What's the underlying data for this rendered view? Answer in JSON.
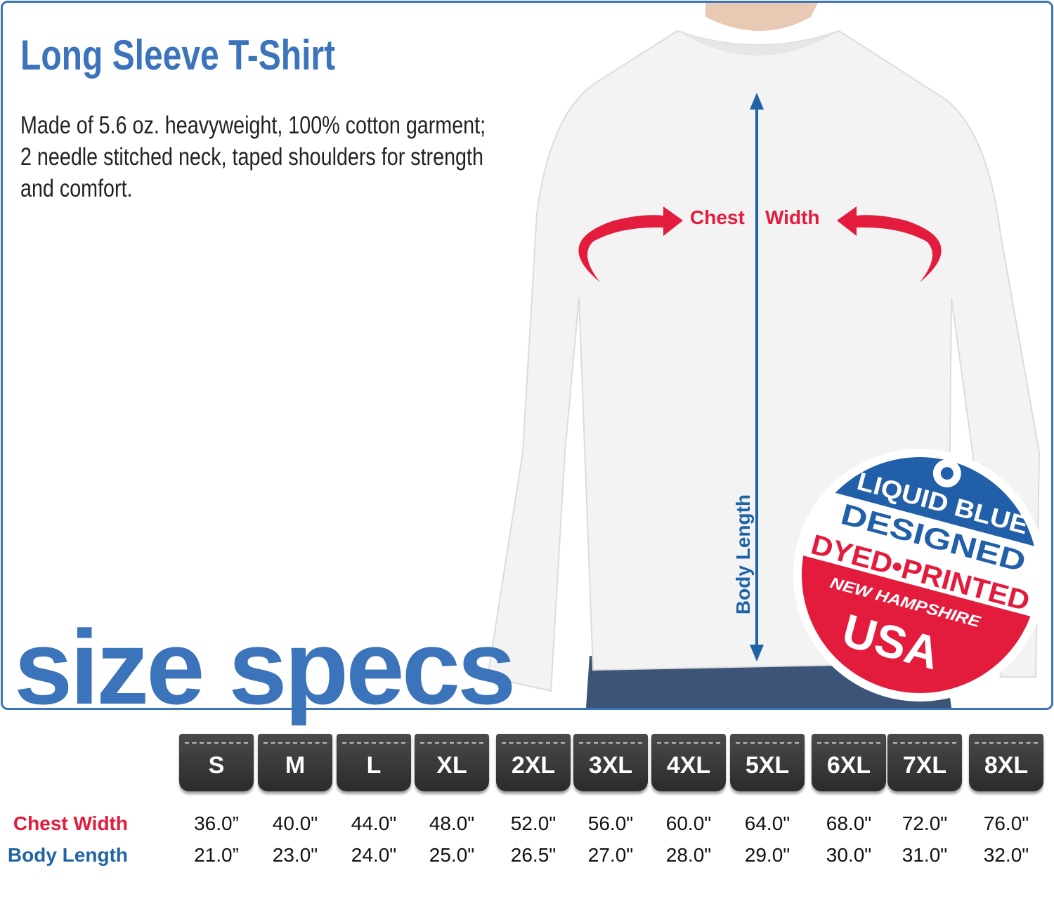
{
  "title": "Long Sleeve T-Shirt",
  "description": [
    "Made of 5.6 oz. heavyweight, 100% cotton garment;",
    "2 needle stitched neck, taped shoulders for strength",
    "and comfort."
  ],
  "headline": "size specs",
  "diagram": {
    "chest_left": "Chest",
    "chest_right": "Width",
    "body_length": "Body Length"
  },
  "badge": {
    "brand": "LIQUID BLUE",
    "line1": "DESIGNED",
    "line2": "DYED•PRINTED",
    "line3": "NEW HAMPSHIRE",
    "line4": "USA"
  },
  "colors": {
    "blue": "#3b74ba",
    "red": "#e31b3c",
    "tag": "#333333"
  },
  "table": {
    "sizes": [
      "S",
      "M",
      "L",
      "XL",
      "2XL",
      "3XL",
      "4XL",
      "5XL",
      "6XL",
      "7XL",
      "8XL"
    ],
    "rows": [
      {
        "label": "Chest Width",
        "values": [
          "36.0”",
          "40.0\"",
          "44.0\"",
          "48.0\"",
          "52.0\"",
          "56.0\"",
          "60.0\"",
          "64.0\"",
          "68.0\"",
          "72.0\"",
          "76.0\""
        ]
      },
      {
        "label": "Body Length",
        "values": [
          "21.0”",
          "23.0\"",
          "24.0\"",
          "25.0\"",
          "26.5\"",
          "27.0\"",
          "28.0\"",
          "29.0\"",
          "30.0\"",
          "31.0\"",
          "32.0\""
        ]
      }
    ]
  }
}
